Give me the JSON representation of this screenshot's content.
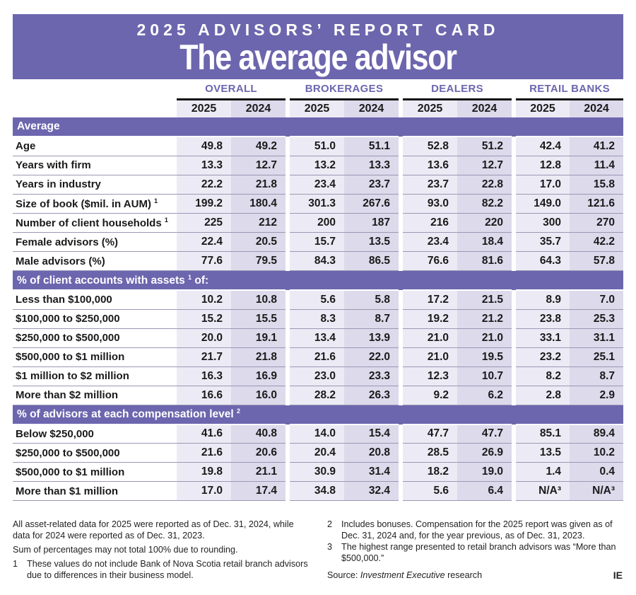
{
  "header": {
    "kicker": "2025 ADVISORS’ REPORT CARD",
    "title": "The average advisor"
  },
  "groups": [
    "OVERALL",
    "BROKERAGES",
    "DEALERS",
    "RETAIL BANKS"
  ],
  "years": [
    "2025",
    "2024"
  ],
  "sections": [
    {
      "title": "Average",
      "sup": "",
      "rows": [
        {
          "label": "Age",
          "sup": "",
          "values": [
            "49.8",
            "49.2",
            "51.0",
            "51.1",
            "52.8",
            "51.2",
            "42.4",
            "41.2"
          ]
        },
        {
          "label": "Years with firm",
          "sup": "",
          "values": [
            "13.3",
            "12.7",
            "13.2",
            "13.3",
            "13.6",
            "12.7",
            "12.8",
            "11.4"
          ]
        },
        {
          "label": "Years in industry",
          "sup": "",
          "values": [
            "22.2",
            "21.8",
            "23.4",
            "23.7",
            "23.7",
            "22.8",
            "17.0",
            "15.8"
          ]
        },
        {
          "label": "Size of book ($mil. in AUM)",
          "sup": "1",
          "values": [
            "199.2",
            "180.4",
            "301.3",
            "267.6",
            "93.0",
            "82.2",
            "149.0",
            "121.6"
          ]
        },
        {
          "label": "Number of client households",
          "sup": "1",
          "values": [
            "225",
            "212",
            "200",
            "187",
            "216",
            "220",
            "300",
            "270"
          ]
        },
        {
          "label": "Female advisors (%)",
          "sup": "",
          "values": [
            "22.4",
            "20.5",
            "15.7",
            "13.5",
            "23.4",
            "18.4",
            "35.7",
            "42.2"
          ]
        },
        {
          "label": "Male advisors (%)",
          "sup": "",
          "values": [
            "77.6",
            "79.5",
            "84.3",
            "86.5",
            "76.6",
            "81.6",
            "64.3",
            "57.8"
          ]
        }
      ]
    },
    {
      "title": "% of client accounts with assets",
      "sup": "1",
      "title_after": " of:",
      "rows": [
        {
          "label": "Less than $100,000",
          "sup": "",
          "values": [
            "10.2",
            "10.8",
            "5.6",
            "5.8",
            "17.2",
            "21.5",
            "8.9",
            "7.0"
          ]
        },
        {
          "label": "$100,000 to $250,000",
          "sup": "",
          "values": [
            "15.2",
            "15.5",
            "8.3",
            "8.7",
            "19.2",
            "21.2",
            "23.8",
            "25.3"
          ]
        },
        {
          "label": "$250,000 to $500,000",
          "sup": "",
          "values": [
            "20.0",
            "19.1",
            "13.4",
            "13.9",
            "21.0",
            "21.0",
            "33.1",
            "31.1"
          ]
        },
        {
          "label": "$500,000 to $1 million",
          "sup": "",
          "values": [
            "21.7",
            "21.8",
            "21.6",
            "22.0",
            "21.0",
            "19.5",
            "23.2",
            "25.1"
          ]
        },
        {
          "label": "$1 million to $2 million",
          "sup": "",
          "values": [
            "16.3",
            "16.9",
            "23.0",
            "23.3",
            "12.3",
            "10.7",
            "8.2",
            "8.7"
          ]
        },
        {
          "label": "More than $2 million",
          "sup": "",
          "values": [
            "16.6",
            "16.0",
            "28.2",
            "26.3",
            "9.2",
            "6.2",
            "2.8",
            "2.9"
          ]
        }
      ]
    },
    {
      "title": "% of advisors at each compensation level",
      "sup": "2",
      "title_after": "",
      "rows": [
        {
          "label": "Below $250,000",
          "sup": "",
          "values": [
            "41.6",
            "40.8",
            "14.0",
            "15.4",
            "47.7",
            "47.7",
            "85.1",
            "89.4"
          ]
        },
        {
          "label": "$250,000 to $500,000",
          "sup": "",
          "values": [
            "21.6",
            "20.6",
            "20.4",
            "20.8",
            "28.5",
            "26.9",
            "13.5",
            "10.2"
          ]
        },
        {
          "label": "$500,000 to $1 million",
          "sup": "",
          "values": [
            "19.8",
            "21.1",
            "30.9",
            "31.4",
            "18.2",
            "19.0",
            "1.4",
            "0.4"
          ]
        },
        {
          "label": "More than $1 million",
          "sup": "",
          "values": [
            "17.0",
            "17.4",
            "34.8",
            "32.4",
            "5.6",
            "6.4",
            "N/A³",
            "N/A³"
          ]
        }
      ]
    }
  ],
  "notes": {
    "left": [
      "All asset-related data for 2025 were reported as of Dec. 31, 2024, while data for 2024 were reported as of Dec. 31, 2023.",
      "Sum of percentages may not total 100% due to rounding."
    ],
    "numbered": [
      {
        "num": "1",
        "text": "These values do not include Bank of Nova Scotia retail branch advisors due to differences in their business model."
      },
      {
        "num": "2",
        "text": "Includes bonuses. Compensation for the 2025 report was given as of Dec. 31, 2024 and, for the year previous, as of Dec. 31, 2023."
      },
      {
        "num": "3",
        "text": "The highest range presented to retail branch advisors was “More than $500,000.”"
      }
    ],
    "source_prefix": "Source: ",
    "source_italic": "Investment Executive",
    "source_suffix": " research",
    "logo": "IE"
  },
  "colors": {
    "accent": "#6c66ae",
    "col2025": "#ecebf5",
    "col2024": "#dcdaeb"
  }
}
